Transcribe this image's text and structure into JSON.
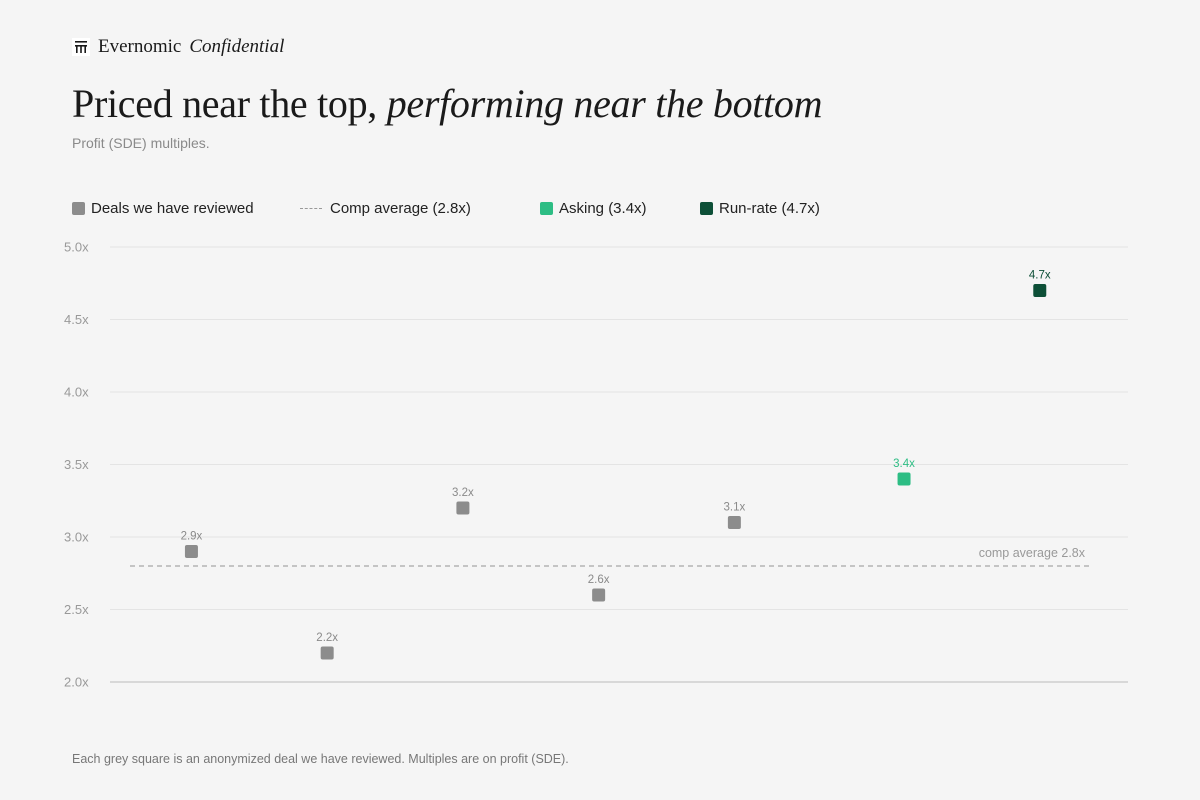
{
  "brand": {
    "name": "Evernomic",
    "tag": "Confidential",
    "logo_icon": "grid-logo-icon"
  },
  "header": {
    "title_plain": "Priced near the top, ",
    "title_italic": "performing near the bottom",
    "subtitle": "Profit (SDE) multiples."
  },
  "legend": {
    "deals": "Deals we have reviewed",
    "comp": "Comp average (2.8x)",
    "asking": "Asking (3.4x)",
    "runrate": "Run-rate (4.7x)"
  },
  "footnote": "Each grey square is an anonymized deal we have reviewed. Multiples are on profit (SDE).",
  "colors": {
    "deal": "#8c8c8c",
    "asking": "#2dbd84",
    "asking_label": "#2dbd84",
    "runrate": "#0d4f37",
    "grid": "#e4e4e4",
    "axis": "#cfcfcf",
    "ref": "#a8a8a8"
  },
  "chart_data": {
    "type": "scatter",
    "ylim": [
      2.0,
      5.0
    ],
    "yticks": [
      2.0,
      2.5,
      3.0,
      3.5,
      4.0,
      4.5,
      5.0
    ],
    "ytick_labels": [
      "2.0x",
      "2.5x",
      "3.0x",
      "3.5x",
      "4.0x",
      "4.5x",
      "5.0x"
    ],
    "x": [
      1,
      2,
      3,
      4,
      5,
      6,
      7
    ],
    "xlim": [
      0.4,
      7.9
    ],
    "points": [
      {
        "x": 1,
        "y": 2.9,
        "label": "2.9x",
        "kind": "deal"
      },
      {
        "x": 2,
        "y": 2.2,
        "label": "2.2x",
        "kind": "deal"
      },
      {
        "x": 3,
        "y": 3.2,
        "label": "3.2x",
        "kind": "deal"
      },
      {
        "x": 4,
        "y": 2.6,
        "label": "2.6x",
        "kind": "deal"
      },
      {
        "x": 5,
        "y": 3.1,
        "label": "3.1x",
        "kind": "deal"
      },
      {
        "x": 6.25,
        "y": 3.4,
        "label": "3.4x",
        "kind": "asking"
      },
      {
        "x": 7.25,
        "y": 4.7,
        "label": "4.7x",
        "kind": "runrate"
      }
    ],
    "reference_line": {
      "y": 2.8,
      "label": "comp average 2.8x"
    },
    "grid": true,
    "legend_position": "top-left"
  }
}
